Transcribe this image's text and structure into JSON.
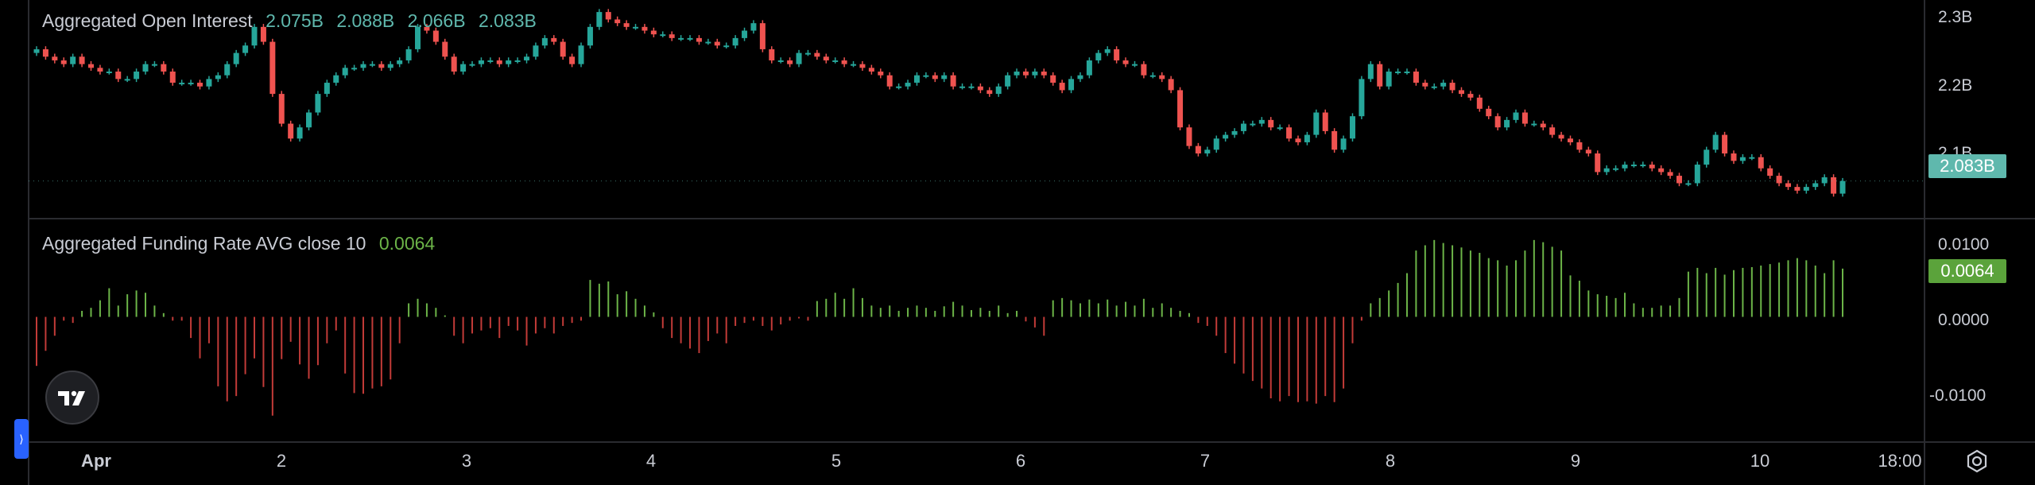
{
  "legend_oi": {
    "title": "Aggregated Open Interest",
    "values": [
      "2.075B",
      "2.088B",
      "2.066B",
      "2.083B"
    ]
  },
  "legend_fr": {
    "title": "Aggregated Funding Rate AVG close 10",
    "value": "0.0064"
  },
  "colors": {
    "up": "#26a69a",
    "down": "#ef5350",
    "fr_positive": "#6cb448",
    "fr_negative": "#c23b38",
    "oi_tag": "#5fb8ad",
    "fr_tag": "#5ba33b"
  },
  "logo_icon": "tradingview-logo-icon",
  "settings_icon": "gear-icon",
  "chart_data": [
    {
      "type": "candlestick",
      "title": "Aggregated Open Interest",
      "y_ticks": [
        "2.3B",
        "2.2B",
        "2.1B"
      ],
      "y_tick_values": [
        2.3,
        2.2,
        2.1
      ],
      "ylim": [
        2.0463,
        2.3208
      ],
      "last_value_label": "2.083B",
      "last_value": 2.083,
      "close": [
        2.26,
        2.25,
        2.245,
        2.24,
        2.25,
        2.24,
        2.235,
        2.23,
        2.23,
        2.22,
        2.22,
        2.23,
        2.24,
        2.24,
        2.23,
        2.215,
        2.215,
        2.215,
        2.21,
        2.22,
        2.225,
        2.24,
        2.255,
        2.265,
        2.29,
        2.27,
        2.2,
        2.16,
        2.14,
        2.155,
        2.175,
        2.2,
        2.215,
        2.225,
        2.235,
        2.235,
        2.24,
        2.24,
        2.235,
        2.24,
        2.245,
        2.26,
        2.29,
        2.285,
        2.27,
        2.25,
        2.23,
        2.24,
        2.24,
        2.245,
        2.245,
        2.24,
        2.245,
        2.245,
        2.25,
        2.265,
        2.275,
        2.27,
        2.25,
        2.24,
        2.265,
        2.29,
        2.31,
        2.3,
        2.295,
        2.29,
        2.29,
        2.285,
        2.28,
        2.28,
        2.275,
        2.275,
        2.275,
        2.27,
        2.27,
        2.265,
        2.265,
        2.275,
        2.285,
        2.295,
        2.26,
        2.245,
        2.245,
        2.24,
        2.255,
        2.255,
        2.25,
        2.245,
        2.245,
        2.24,
        2.24,
        2.235,
        2.23,
        2.225,
        2.21,
        2.21,
        2.215,
        2.225,
        2.225,
        2.22,
        2.225,
        2.21,
        2.21,
        2.21,
        2.205,
        2.2,
        2.21,
        2.225,
        2.23,
        2.225,
        2.23,
        2.225,
        2.215,
        2.205,
        2.22,
        2.225,
        2.245,
        2.255,
        2.26,
        2.245,
        2.24,
        2.24,
        2.225,
        2.225,
        2.22,
        2.205,
        2.155,
        2.13,
        2.12,
        2.125,
        2.14,
        2.145,
        2.15,
        2.16,
        2.16,
        2.165,
        2.155,
        2.155,
        2.14,
        2.135,
        2.145,
        2.175,
        2.15,
        2.125,
        2.14,
        2.17,
        2.22,
        2.24,
        2.21,
        2.23,
        2.23,
        2.23,
        2.215,
        2.21,
        2.21,
        2.215,
        2.205,
        2.2,
        2.195,
        2.18,
        2.17,
        2.155,
        2.165,
        2.175,
        2.16,
        2.16,
        2.155,
        2.145,
        2.14,
        2.135,
        2.125,
        2.12,
        2.095,
        2.1,
        2.1,
        2.105,
        2.105,
        2.105,
        2.1,
        2.095,
        2.09,
        2.08,
        2.08,
        2.105,
        2.125,
        2.145,
        2.12,
        2.11,
        2.115,
        2.115,
        2.1,
        2.09,
        2.08,
        2.075,
        2.07,
        2.075,
        2.08,
        2.088,
        2.066,
        2.083
      ]
    },
    {
      "type": "bar",
      "title": "Aggregated Funding Rate AVG close 10",
      "y_ticks": [
        "0.0100",
        "0.0000",
        "-0.0100"
      ],
      "y_tick_values": [
        0.01,
        0.0,
        -0.01
      ],
      "ylim": [
        -0.0166,
        0.0125
      ],
      "last_value_label": "0.0064",
      "last_value": 0.0064,
      "values": [
        -0.0065,
        -0.0045,
        -0.0025,
        -0.0005,
        -0.0008,
        0.0008,
        0.0012,
        0.0022,
        0.0038,
        0.0015,
        0.003,
        0.0035,
        0.0032,
        0.0015,
        0.0005,
        -0.0005,
        -0.0005,
        -0.0028,
        -0.0055,
        -0.0035,
        -0.0092,
        -0.0112,
        -0.0105,
        -0.0076,
        -0.0055,
        -0.0093,
        -0.0131,
        -0.0056,
        -0.0033,
        -0.0063,
        -0.0082,
        -0.0064,
        -0.0035,
        -0.0018,
        -0.0075,
        -0.0101,
        -0.0102,
        -0.0095,
        -0.0092,
        -0.0083,
        -0.0035,
        0.0018,
        0.0024,
        0.0018,
        0.0012,
        0.0002,
        -0.0025,
        -0.0035,
        -0.0022,
        -0.0018,
        -0.0015,
        -0.0028,
        -0.0012,
        -0.0018,
        -0.0038,
        -0.0022,
        -0.0015,
        -0.0022,
        -0.0012,
        -0.0008,
        -0.0005,
        0.0049,
        0.0044,
        0.0047,
        0.003,
        0.0034,
        0.0024,
        0.0015,
        0.0006,
        -0.0015,
        -0.0028,
        -0.0035,
        -0.0042,
        -0.0048,
        -0.0032,
        -0.0022,
        -0.0035,
        -0.0012,
        -0.0008,
        -0.0005,
        -0.0012,
        -0.0018,
        -0.001,
        -0.0005,
        -0.0002,
        -0.0005,
        0.0021,
        0.0024,
        0.0032,
        0.0024,
        0.0038,
        0.0025,
        0.0015,
        0.0012,
        0.0015,
        0.0008,
        0.0012,
        0.0015,
        0.0012,
        0.0008,
        0.0014,
        0.002,
        0.0015,
        0.0009,
        0.0012,
        0.0008,
        0.0015,
        0.0005,
        0.0008,
        -0.0006,
        -0.0014,
        -0.0025,
        0.0022,
        0.0025,
        0.0022,
        0.0018,
        0.0023,
        0.0018,
        0.0023,
        0.0015,
        0.002,
        0.0015,
        0.0024,
        0.0012,
        0.0018,
        0.0012,
        0.0008,
        0.0005,
        -0.0008,
        -0.0012,
        -0.0025,
        -0.0048,
        -0.0062,
        -0.0075,
        -0.0085,
        -0.0095,
        -0.0108,
        -0.0112,
        -0.0105,
        -0.0113,
        -0.0112,
        -0.0115,
        -0.0105,
        -0.0113,
        -0.0095,
        -0.0035,
        -0.0005,
        0.0018,
        0.0025,
        0.0035,
        0.0045,
        0.0058,
        0.0088,
        0.0095,
        0.0102,
        0.0098,
        0.0095,
        0.0092,
        0.0088,
        0.0085,
        0.0078,
        0.0075,
        0.0068,
        0.0075,
        0.0088,
        0.0102,
        0.0099,
        0.0093,
        0.0088,
        0.0055,
        0.0048,
        0.0035,
        0.003,
        0.0028,
        0.0025,
        0.0032,
        0.0018,
        0.0012,
        0.0012,
        0.0015,
        0.0015,
        0.0025,
        0.006,
        0.0065,
        0.0058,
        0.0065,
        0.0056,
        0.0062,
        0.0065,
        0.0066,
        0.0068,
        0.007,
        0.0072,
        0.0075,
        0.0078,
        0.0075,
        0.0068,
        0.0058,
        0.0075,
        0.0064
      ]
    }
  ],
  "time_axis": {
    "labels": [
      "Apr",
      "2",
      "3",
      "4",
      "5",
      "6",
      "7",
      "8",
      "9",
      "10",
      "18:00"
    ]
  }
}
